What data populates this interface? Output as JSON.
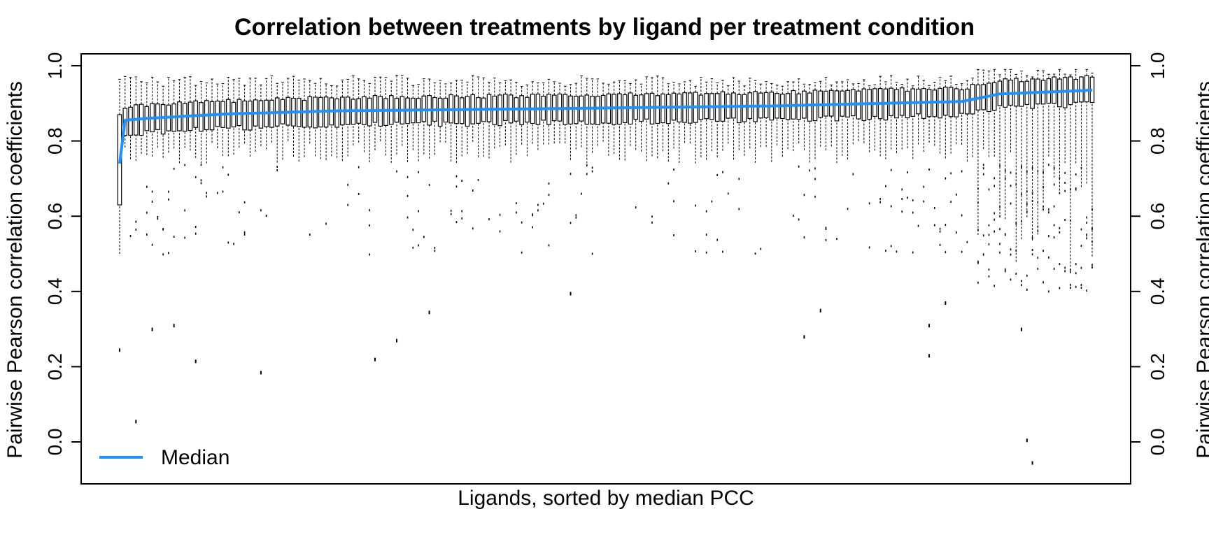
{
  "chart_data": {
    "type": "boxplot",
    "title": "Correlation between treatments by ligand per treatment condition",
    "xlabel": "Ligands, sorted by median PCC",
    "ylabel_left": "Pairwise Pearson correlation coefficients",
    "ylabel_right": "Pairwise Pearson correlation coefficients",
    "ylim": [
      -0.1,
      1.03
    ],
    "yticks": [
      "0.0",
      "0.2",
      "0.4",
      "0.6",
      "0.8",
      "1.0"
    ],
    "n_categories": 180,
    "grid": false,
    "legend": {
      "position": "bottom-left",
      "entries": [
        {
          "label": "Median",
          "color": "#1E90FF"
        }
      ]
    },
    "colors": {
      "median_line": "#1E90FF",
      "box": "#000000"
    },
    "median_profile": [
      {
        "rank": 0,
        "median": 0.74
      },
      {
        "rank": 1,
        "median": 0.855
      },
      {
        "rank": 5,
        "median": 0.86
      },
      {
        "rank": 20,
        "median": 0.872
      },
      {
        "rank": 40,
        "median": 0.88
      },
      {
        "rank": 80,
        "median": 0.886
      },
      {
        "rank": 120,
        "median": 0.893
      },
      {
        "rank": 155,
        "median": 0.905
      },
      {
        "rank": 162,
        "median": 0.925
      },
      {
        "rank": 179,
        "median": 0.935
      }
    ],
    "typical_box": {
      "q1_offset": -0.03,
      "q3_offset": 0.03,
      "whisker_high": 0.96,
      "whisker_low": 0.74
    },
    "notable_outliers": [
      {
        "rank": 0,
        "value": 0.245
      },
      {
        "rank": 3,
        "value": 0.055
      },
      {
        "rank": 6,
        "value": 0.3
      },
      {
        "rank": 10,
        "value": 0.31
      },
      {
        "rank": 14,
        "value": 0.215
      },
      {
        "rank": 26,
        "value": 0.185
      },
      {
        "rank": 47,
        "value": 0.22
      },
      {
        "rank": 51,
        "value": 0.27
      },
      {
        "rank": 83,
        "value": 0.395
      },
      {
        "rank": 57,
        "value": 0.345
      },
      {
        "rank": 126,
        "value": 0.28
      },
      {
        "rank": 129,
        "value": 0.35
      },
      {
        "rank": 149,
        "value": 0.23
      },
      {
        "rank": 149,
        "value": 0.31
      },
      {
        "rank": 152,
        "value": 0.37
      },
      {
        "rank": 167,
        "value": 0.005
      },
      {
        "rank": 168,
        "value": -0.055
      },
      {
        "rank": 166,
        "value": 0.3
      }
    ]
  }
}
